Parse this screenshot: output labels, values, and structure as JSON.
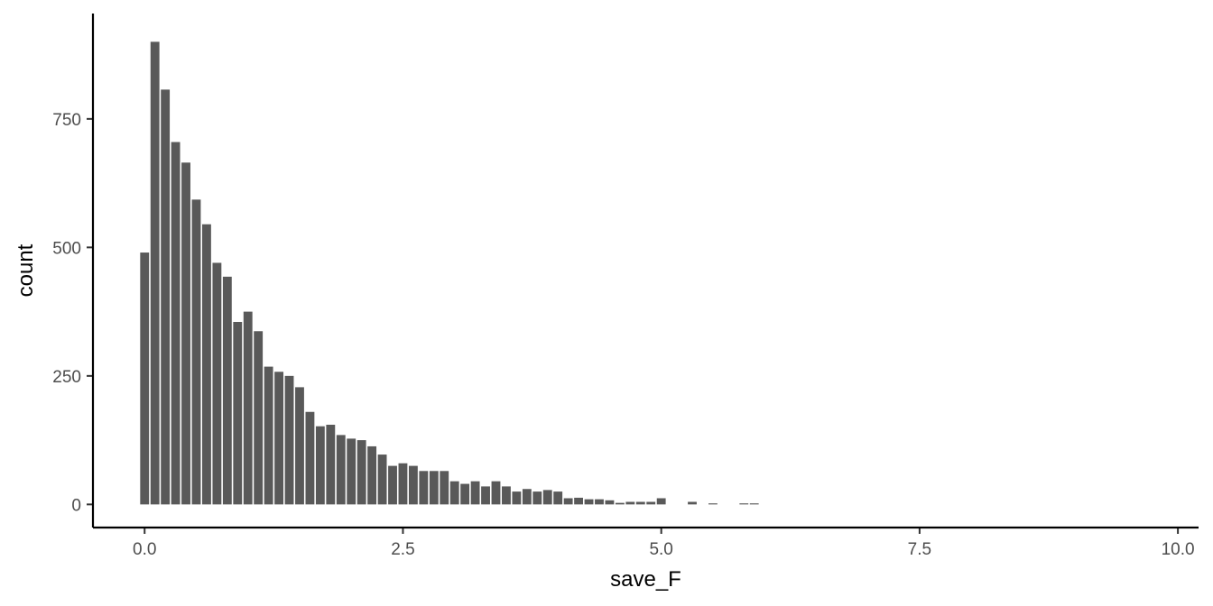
{
  "chart_data": {
    "type": "bar",
    "xlabel": "save_F",
    "ylabel": "count",
    "xlim": [
      -0.5,
      10.2
    ],
    "ylim": [
      -45,
      955
    ],
    "x_ticks": [
      0.0,
      2.5,
      5.0,
      7.5,
      10.0
    ],
    "x_tick_labels": [
      "0.0",
      "2.5",
      "5.0",
      "7.5",
      "10.0"
    ],
    "y_ticks": [
      0,
      250,
      500,
      750
    ],
    "y_tick_labels": [
      "0",
      "250",
      "500",
      "750"
    ],
    "bin_width": 0.1,
    "bar_color": "#595959",
    "grid": false,
    "x": [
      0.0,
      0.1,
      0.2,
      0.3,
      0.4,
      0.5,
      0.6,
      0.7,
      0.8,
      0.9,
      1.0,
      1.1,
      1.2,
      1.3,
      1.4,
      1.5,
      1.6,
      1.7,
      1.8,
      1.9,
      2.0,
      2.1,
      2.2,
      2.3,
      2.4,
      2.5,
      2.6,
      2.7,
      2.8,
      2.9,
      3.0,
      3.1,
      3.2,
      3.3,
      3.4,
      3.5,
      3.6,
      3.7,
      3.8,
      3.9,
      4.0,
      4.1,
      4.2,
      4.3,
      4.4,
      4.5,
      4.6,
      4.7,
      4.8,
      4.9,
      5.0,
      5.1,
      5.2,
      5.3,
      5.4,
      5.5,
      5.6,
      5.7,
      5.8,
      5.9
    ],
    "values": [
      490,
      900,
      807,
      705,
      665,
      593,
      545,
      470,
      443,
      355,
      375,
      337,
      268,
      258,
      250,
      228,
      180,
      152,
      155,
      135,
      128,
      125,
      113,
      97,
      75,
      80,
      75,
      65,
      65,
      65,
      45,
      40,
      45,
      35,
      45,
      35,
      25,
      30,
      25,
      28,
      25,
      12,
      13,
      10,
      10,
      8,
      3,
      5,
      5,
      5,
      12,
      0,
      0,
      5,
      0,
      2,
      0,
      0,
      2,
      2
    ]
  }
}
